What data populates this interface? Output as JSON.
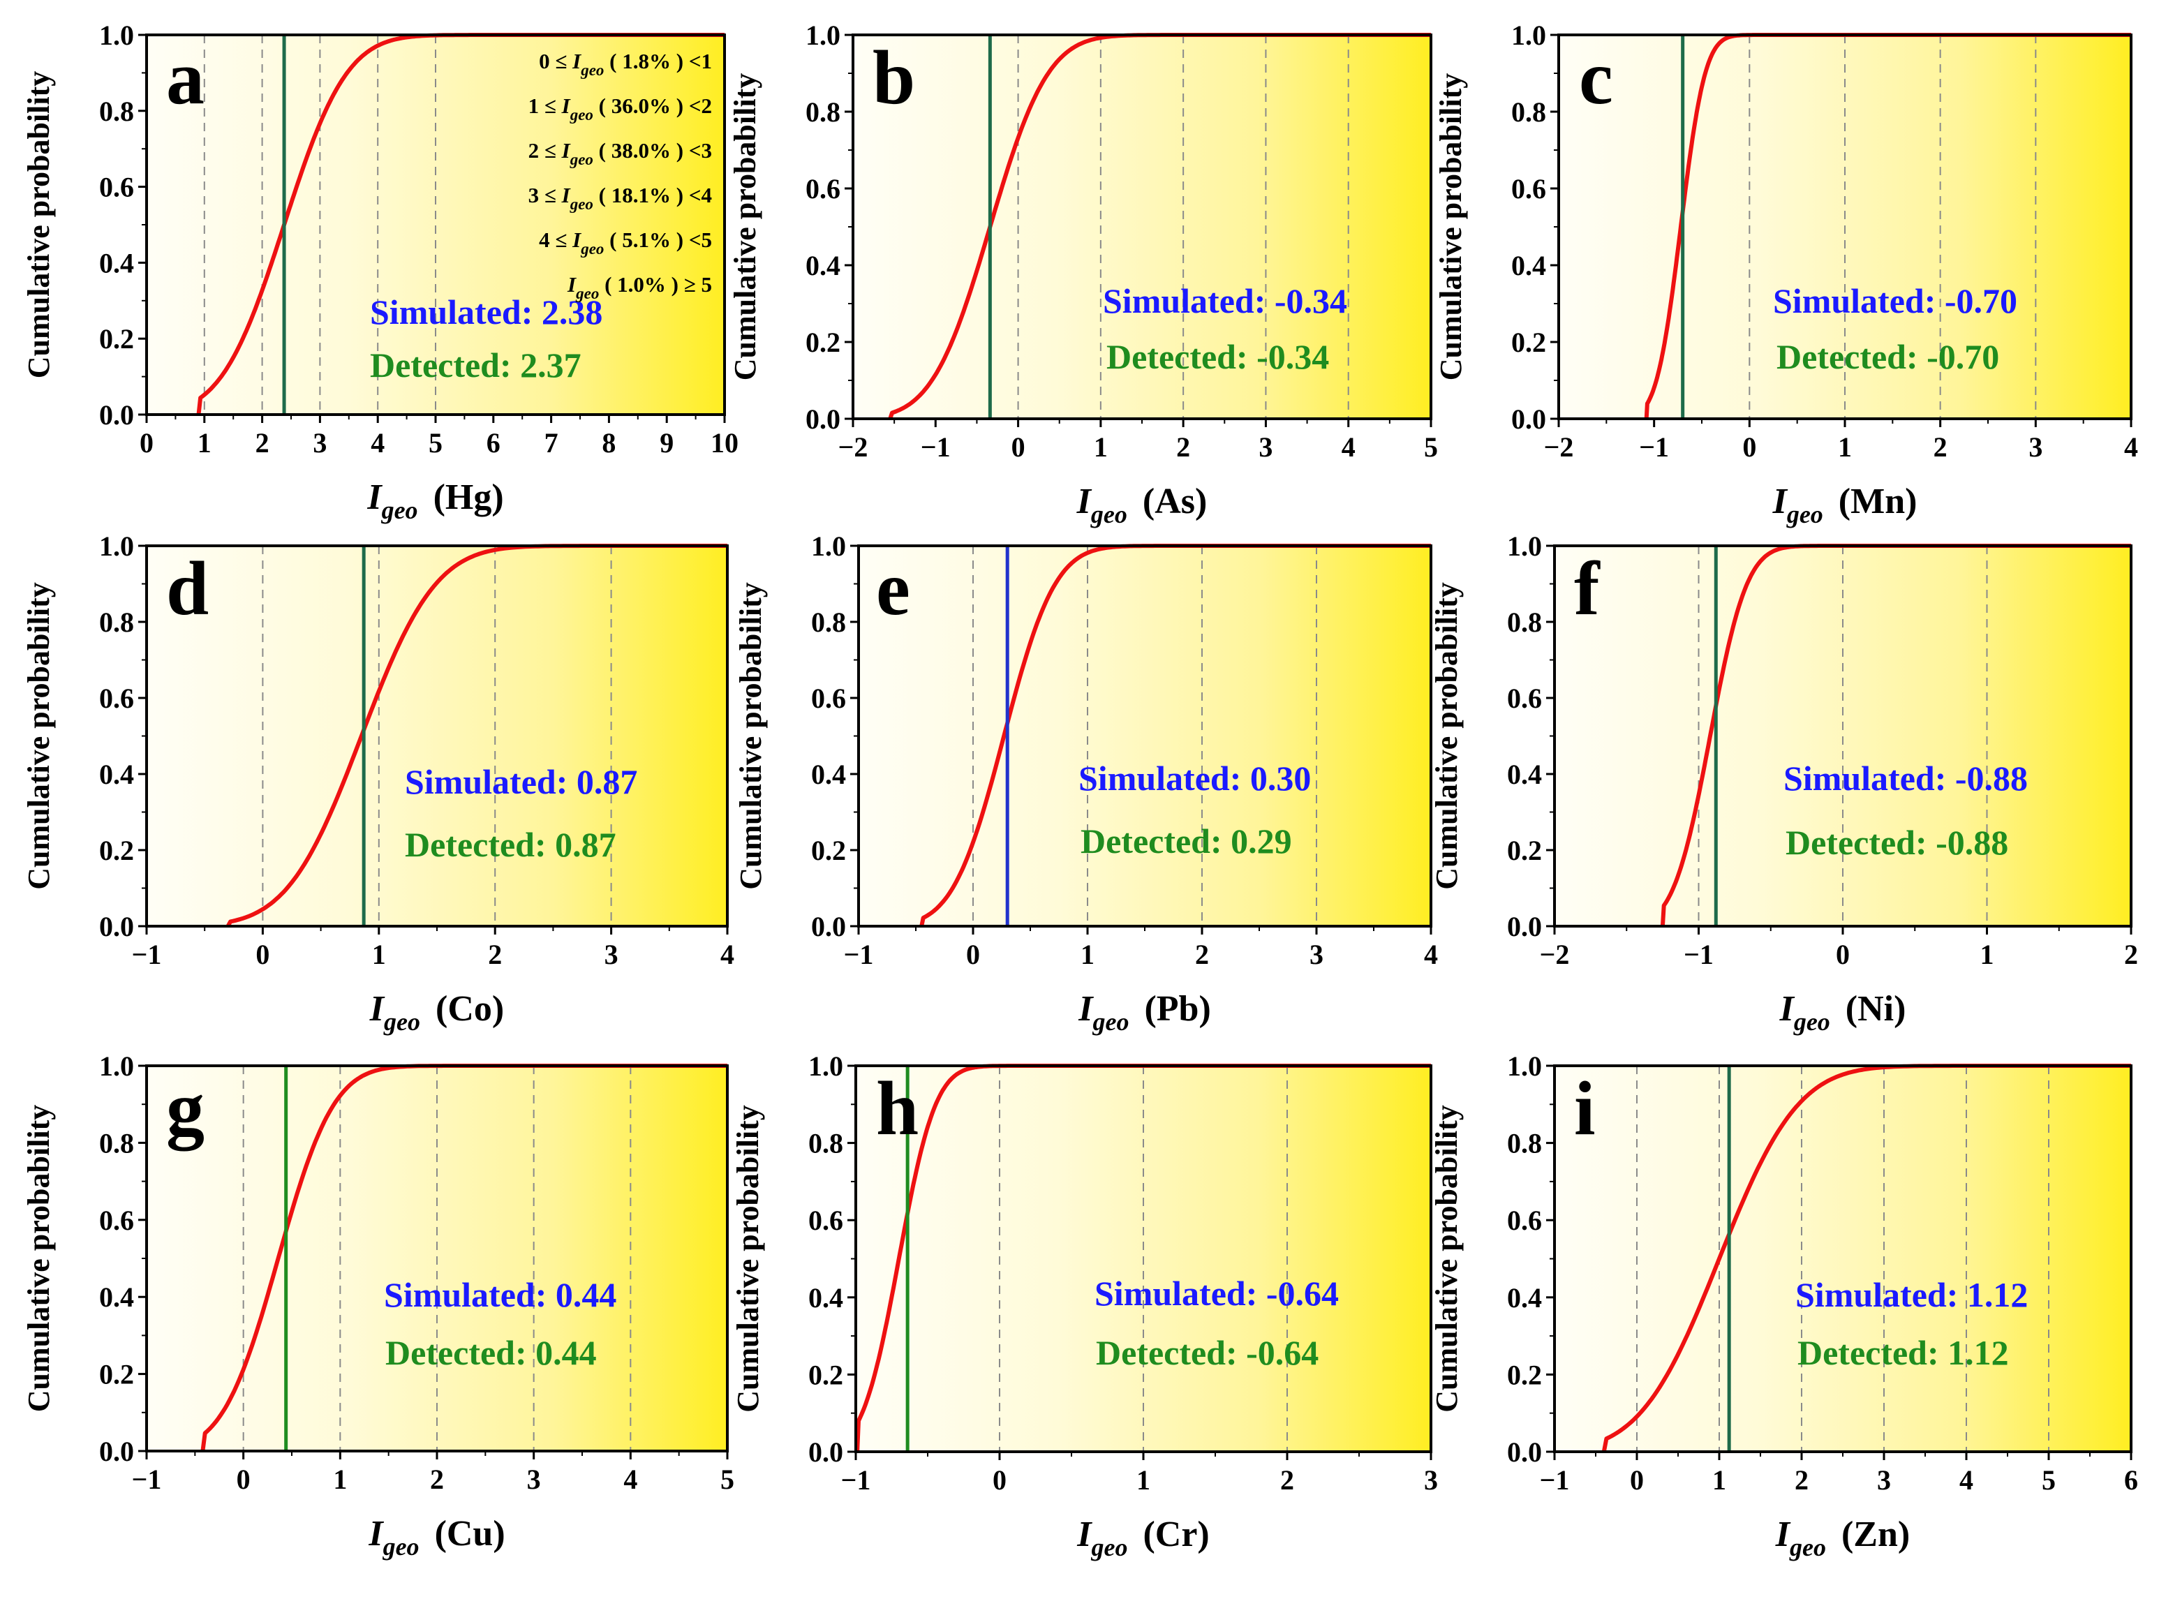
{
  "chart_data": [
    {
      "type": "line",
      "panel": "a",
      "element": "Hg",
      "xlabel_main": "I",
      "xlabel_sub": "geo",
      "xlabel_elem": "(Hg)",
      "ylabel": "Cumulative probability",
      "xlim": [
        0,
        10
      ],
      "ylim": [
        0,
        1
      ],
      "xticks": [
        0,
        1,
        2,
        3,
        4,
        5,
        6,
        7,
        8,
        9,
        10
      ],
      "yticks": [
        0.0,
        0.2,
        0.4,
        0.6,
        0.8,
        1.0
      ],
      "ytick_labels": [
        "0.0",
        "0.2",
        "0.4",
        "0.6",
        "0.8",
        "1.0"
      ],
      "gridlines": [
        1,
        2,
        3,
        4,
        5
      ],
      "curve": {
        "median": 2.38,
        "spread": 0.85,
        "start": 0.9,
        "end": 5.8
      },
      "reference_line": 2.38,
      "reference_color": "#1e6b4a",
      "simulated_label": "Simulated:",
      "simulated_value": "2.38",
      "detected_label": "Detected:",
      "detected_value": "2.37",
      "distribution": [
        {
          "pre": "0 ≤",
          "pct": "( 1.8% )",
          "post": "<1"
        },
        {
          "pre": "1 ≤",
          "pct": "( 36.0% )",
          "post": "<2"
        },
        {
          "pre": "2 ≤",
          "pct": "( 38.0% )",
          "post": "<3"
        },
        {
          "pre": "3 ≤",
          "pct": "( 18.1% )",
          "post": "<4"
        },
        {
          "pre": "4 ≤",
          "pct": "( 5.1% )",
          "post": "<5"
        },
        {
          "pre": "",
          "pct": "( 1.0% )",
          "post": "≥ 5"
        }
      ]
    },
    {
      "type": "line",
      "panel": "b",
      "element": "As",
      "xlabel_main": "I",
      "xlabel_sub": "geo",
      "xlabel_elem": "(As)",
      "ylabel": "Cumulative probability",
      "xlim": [
        -2,
        5
      ],
      "ylim": [
        0,
        1
      ],
      "xticks": [
        -2,
        -1,
        0,
        1,
        2,
        3,
        4,
        5
      ],
      "yticks": [
        0.0,
        0.2,
        0.4,
        0.6,
        0.8,
        1.0
      ],
      "ytick_labels": [
        "0.0",
        "0.2",
        "0.4",
        "0.6",
        "0.8",
        "1.0"
      ],
      "gridlines": [
        0,
        1,
        2,
        3,
        4
      ],
      "curve": {
        "median": -0.34,
        "spread": 0.55,
        "start": -1.55,
        "end": 2.2
      },
      "reference_line": -0.34,
      "reference_color": "#1e6b4a",
      "simulated_label": "Simulated:",
      "simulated_value": "-0.34",
      "detected_label": "Detected:",
      "detected_value": "-0.34"
    },
    {
      "type": "line",
      "panel": "c",
      "element": "Mn",
      "xlabel_main": "I",
      "xlabel_sub": "geo",
      "xlabel_elem": "(Mn)",
      "ylabel": "Cumulative probability",
      "xlim": [
        -2,
        4
      ],
      "ylim": [
        0,
        1
      ],
      "xticks": [
        -2,
        -1,
        0,
        1,
        2,
        3,
        4
      ],
      "yticks": [
        0.0,
        0.2,
        0.4,
        0.6,
        0.8,
        1.0
      ],
      "ytick_labels": [
        "0.0",
        "0.2",
        "0.4",
        "0.6",
        "0.8",
        "1.0"
      ],
      "gridlines": [
        0,
        1,
        2,
        3
      ],
      "curve": {
        "median": -0.72,
        "spread": 0.2,
        "start": -1.08,
        "end": 0.3
      },
      "reference_line": -0.7,
      "reference_color": "#1e6b4a",
      "simulated_label": "Simulated:",
      "simulated_value": "-0.70",
      "detected_label": "Detected:",
      "detected_value": "-0.70"
    },
    {
      "type": "line",
      "panel": "d",
      "element": "Co",
      "xlabel_main": "I",
      "xlabel_sub": "geo",
      "xlabel_elem": "(Co)",
      "ylabel": "Cumulative probability",
      "xlim": [
        -1,
        4
      ],
      "ylim": [
        0,
        1
      ],
      "xticks": [
        -1,
        0,
        1,
        2,
        3,
        4
      ],
      "yticks": [
        0.0,
        0.2,
        0.4,
        0.6,
        0.8,
        1.0
      ],
      "ytick_labels": [
        "0.0",
        "0.2",
        "0.4",
        "0.6",
        "0.8",
        "1.0"
      ],
      "gridlines": [
        0,
        1,
        2,
        3
      ],
      "curve": {
        "median": 0.85,
        "spread": 0.5,
        "start": -0.3,
        "end": 3.2
      },
      "reference_line": 0.87,
      "reference_color": "#1e6b4a",
      "simulated_label": "Simulated:",
      "simulated_value": "0.87",
      "detected_label": "Detected:",
      "detected_value": "0.87"
    },
    {
      "type": "line",
      "panel": "e",
      "element": "Pb",
      "xlabel_main": "I",
      "xlabel_sub": "geo",
      "xlabel_elem": "(Pb)",
      "ylabel": "Cumulative probability",
      "xlim": [
        -1,
        4
      ],
      "ylim": [
        0,
        1
      ],
      "xticks": [
        -1,
        0,
        1,
        2,
        3,
        4
      ],
      "yticks": [
        0.0,
        0.2,
        0.4,
        0.6,
        0.8,
        1.0
      ],
      "ytick_labels": [
        "0.0",
        "0.2",
        "0.4",
        "0.6",
        "0.8",
        "1.0"
      ],
      "gridlines": [
        0,
        1,
        2,
        3
      ],
      "curve": {
        "median": 0.27,
        "spread": 0.35,
        "start": -0.45,
        "end": 2.0
      },
      "reference_line": 0.3,
      "reference_color": "#2233cc",
      "simulated_label": "Simulated:",
      "simulated_value": "0.30",
      "detected_label": "Detected:",
      "detected_value": "0.29"
    },
    {
      "type": "line",
      "panel": "f",
      "element": "Ni",
      "xlabel_main": "I",
      "xlabel_sub": "geo",
      "xlabel_elem": "(Ni)",
      "ylabel": "Cumulative probability",
      "xlim": [
        -2,
        2
      ],
      "ylim": [
        0,
        1
      ],
      "xticks": [
        -2,
        -1,
        0,
        1,
        2
      ],
      "yticks": [
        0.0,
        0.2,
        0.4,
        0.6,
        0.8,
        1.0
      ],
      "ytick_labels": [
        "0.0",
        "0.2",
        "0.4",
        "0.6",
        "0.8",
        "1.0"
      ],
      "gridlines": [
        -1,
        0,
        1
      ],
      "curve": {
        "median": -0.92,
        "spread": 0.2,
        "start": -1.25,
        "end": 0.2
      },
      "reference_line": -0.88,
      "reference_color": "#1e6b4a",
      "simulated_label": "Simulated:",
      "simulated_value": "-0.88",
      "detected_label": "Detected:",
      "detected_value": "-0.88"
    },
    {
      "type": "line",
      "panel": "g",
      "element": "Cu",
      "xlabel_main": "I",
      "xlabel_sub": "geo",
      "xlabel_elem": "(Cu)",
      "ylabel": "Cumulative probability",
      "xlim": [
        -1,
        5
      ],
      "ylim": [
        0,
        1
      ],
      "xticks": [
        -1,
        0,
        1,
        2,
        3,
        4,
        5
      ],
      "yticks": [
        0.0,
        0.2,
        0.4,
        0.6,
        0.8,
        1.0
      ],
      "ytick_labels": [
        "0.0",
        "0.2",
        "0.4",
        "0.6",
        "0.8",
        "1.0"
      ],
      "gridlines": [
        0,
        1,
        2,
        3,
        4
      ],
      "curve": {
        "median": 0.36,
        "spread": 0.45,
        "start": -0.42,
        "end": 3.3
      },
      "reference_line": 0.44,
      "reference_color": "#1f8c1f",
      "simulated_label": "Simulated:",
      "simulated_value": "0.44",
      "detected_label": "Detected:",
      "detected_value": "0.44"
    },
    {
      "type": "line",
      "panel": "h",
      "element": "Cr",
      "xlabel_main": "I",
      "xlabel_sub": "geo",
      "xlabel_elem": "(Cr)",
      "ylabel": "Cumulative probability",
      "xlim": [
        -1,
        3
      ],
      "ylim": [
        0,
        1
      ],
      "xticks": [
        -1,
        0,
        1,
        2,
        3
      ],
      "yticks": [
        0.0,
        0.2,
        0.4,
        0.6,
        0.8,
        1.0
      ],
      "ytick_labels": [
        "0.0",
        "0.2",
        "0.4",
        "0.6",
        "0.8",
        "1.0"
      ],
      "gridlines": [
        0,
        1,
        2
      ],
      "curve": {
        "median": -0.7,
        "spread": 0.2,
        "start": -0.99,
        "end": 0.5
      },
      "reference_line": -0.64,
      "reference_color": "#1f8c1f",
      "simulated_label": "Simulated:",
      "simulated_value": "-0.64",
      "detected_label": "Detected:",
      "detected_value": "-0.64"
    },
    {
      "type": "line",
      "panel": "i",
      "element": "Zn",
      "xlabel_main": "I",
      "xlabel_sub": "geo",
      "xlabel_elem": "(Zn)",
      "ylabel": "Cumulative probability",
      "xlim": [
        -1,
        6
      ],
      "ylim": [
        0,
        1
      ],
      "xticks": [
        -1,
        0,
        1,
        2,
        3,
        4,
        5,
        6
      ],
      "yticks": [
        0.0,
        0.2,
        0.4,
        0.6,
        0.8,
        1.0
      ],
      "ytick_labels": [
        "0.0",
        "0.2",
        "0.4",
        "0.6",
        "0.8",
        "1.0"
      ],
      "gridlines": [
        0,
        1,
        2,
        3,
        4,
        5
      ],
      "curve": {
        "median": 1.0,
        "spread": 0.75,
        "start": -0.4,
        "end": 4.5
      },
      "reference_line": 1.12,
      "reference_color": "#1e6b4a",
      "simulated_label": "Simulated:",
      "simulated_value": "1.12",
      "detected_label": "Detected:",
      "detected_value": "1.12"
    }
  ]
}
